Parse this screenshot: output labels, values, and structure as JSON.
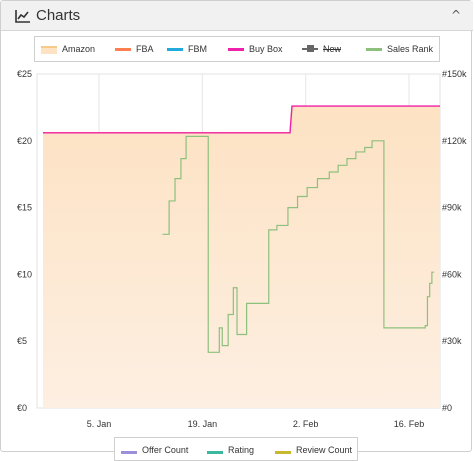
{
  "header": {
    "title": "Charts",
    "icon": "line-chart-icon",
    "chevron": "^"
  },
  "legend": [
    {
      "label": "Amazon",
      "color": "#f7c98b",
      "style": "area"
    },
    {
      "label": "FBA",
      "color": "#ff7f50",
      "style": "line"
    },
    {
      "label": "FBM",
      "color": "#22aadd",
      "style": "line"
    },
    {
      "label": "Buy Box",
      "color": "#ee22aa",
      "style": "line"
    },
    {
      "label": "New",
      "color": "#666666",
      "style": "marker",
      "disabled": true
    },
    {
      "label": "Sales Rank",
      "color": "#8dc07d",
      "style": "line"
    }
  ],
  "legend_bottom": [
    {
      "label": "Offer Count",
      "color": "#9b8fd8"
    },
    {
      "label": "Rating",
      "color": "#3cb8a0"
    },
    {
      "label": "Review Count",
      "color": "#c8b830"
    }
  ],
  "chart_data": {
    "type": "line",
    "x_axis": {
      "type": "date",
      "range": [
        "2023-12-28",
        "2023-02-26"
      ],
      "ticks": [
        "5. Jan",
        "19. Jan",
        "2. Feb",
        "16. Feb"
      ]
    },
    "y_axis_left": {
      "label": "",
      "unit": "€",
      "range": [
        0,
        25
      ],
      "ticks": [
        "€0",
        "€5",
        "€10",
        "€15",
        "€20",
        "€25"
      ]
    },
    "y_axis_right": {
      "label": "",
      "range": [
        0,
        150000
      ],
      "ticks": [
        "#0",
        "#30k",
        "#60k",
        "#90k",
        "#120k",
        "#150k"
      ]
    },
    "grid": true,
    "series": [
      {
        "name": "Amazon",
        "axis": "left",
        "type": "area",
        "color": "#f7c98b",
        "points": [
          [
            "2023-12-29",
            20.6
          ],
          [
            "2023-02-02",
            20.6
          ],
          [
            "2023-02-03",
            22.6
          ],
          [
            "2023-02-26",
            22.6
          ]
        ]
      },
      {
        "name": "Buy Box",
        "axis": "left",
        "type": "step",
        "color": "#ee22aa",
        "points": [
          [
            "2023-12-29",
            20.6
          ],
          [
            "2023-02-02",
            20.6
          ],
          [
            "2023-02-03",
            22.6
          ],
          [
            "2023-02-26",
            22.6
          ]
        ]
      },
      {
        "name": "Sales Rank",
        "axis": "right",
        "type": "step",
        "color": "#8dc07d",
        "points": [
          [
            17.0,
            78000
          ],
          [
            17.9,
            93000
          ],
          [
            18.7,
            103000
          ],
          [
            19.5,
            112000
          ],
          [
            20.2,
            122000
          ],
          [
            21.0,
            122000
          ],
          [
            23.2,
            25000
          ],
          [
            24.7,
            36000
          ],
          [
            25.1,
            28000
          ],
          [
            25.9,
            42000
          ],
          [
            26.6,
            54000
          ],
          [
            27.1,
            33000
          ],
          [
            28.4,
            47000
          ],
          [
            30.2,
            47000
          ],
          [
            31.4,
            80000
          ],
          [
            32.5,
            82000
          ],
          [
            34.0,
            90000
          ],
          [
            35.3,
            95000
          ],
          [
            36.6,
            99000
          ],
          [
            38.0,
            103000
          ],
          [
            39.6,
            106000
          ],
          [
            40.8,
            109000
          ],
          [
            42.0,
            112000
          ],
          [
            43.2,
            115000
          ],
          [
            44.4,
            117000
          ],
          [
            45.4,
            120000
          ],
          [
            46.8,
            120000
          ],
          [
            47.0,
            36000
          ],
          [
            49.0,
            36000
          ],
          [
            52.6,
            37000
          ],
          [
            52.9,
            50000
          ],
          [
            53.2,
            56000
          ],
          [
            53.5,
            61000
          ],
          [
            53.8,
            61000
          ]
        ]
      }
    ]
  }
}
